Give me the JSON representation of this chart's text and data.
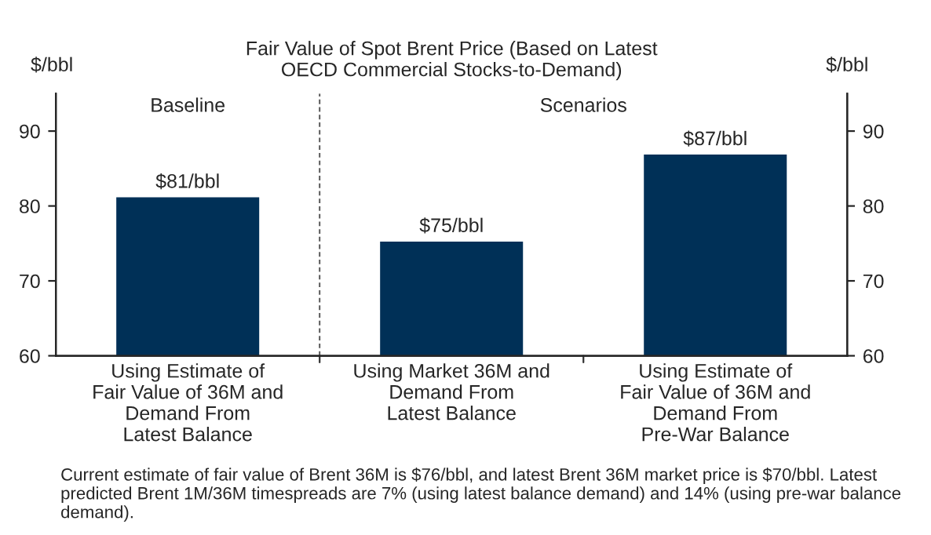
{
  "chart_data": {
    "type": "bar",
    "title": "Fair Value of Spot Brent Price (Based on Latest\nOECD Commercial Stocks-to-Demand)",
    "ylabel": "$/bbl",
    "y2label": "$/bbl",
    "categories": [
      "Using Estimate of\nFair Value of 36M and\nDemand From\nLatest Balance",
      "Using Market 36M and\nDemand From\nLatest Balance",
      "Using Estimate of\nFair Value of 36M and\nDemand From\nPre-War Balance"
    ],
    "values": [
      81.3,
      75.4,
      87.0
    ],
    "value_labels": [
      "$81/bbl",
      "$75/bbl",
      "$87/bbl"
    ],
    "color": "#003057",
    "ylim": [
      60,
      95
    ],
    "yticks": [
      60,
      70,
      80,
      90
    ],
    "y2lim": [
      60,
      95
    ],
    "y2ticks": [
      60,
      70,
      80,
      90
    ],
    "annotations": [
      "Baseline",
      "Scenarios",
      "Current estimate of fair value of Brent 36M is $76/bbl, and latest Brent 36M market price is $70/bbl. Latest predicted Brent 1M/36M timespreads are 7% (using latest balance demand) and 14% (using pre-war balance demand)."
    ],
    "grid": false,
    "legend": false
  }
}
